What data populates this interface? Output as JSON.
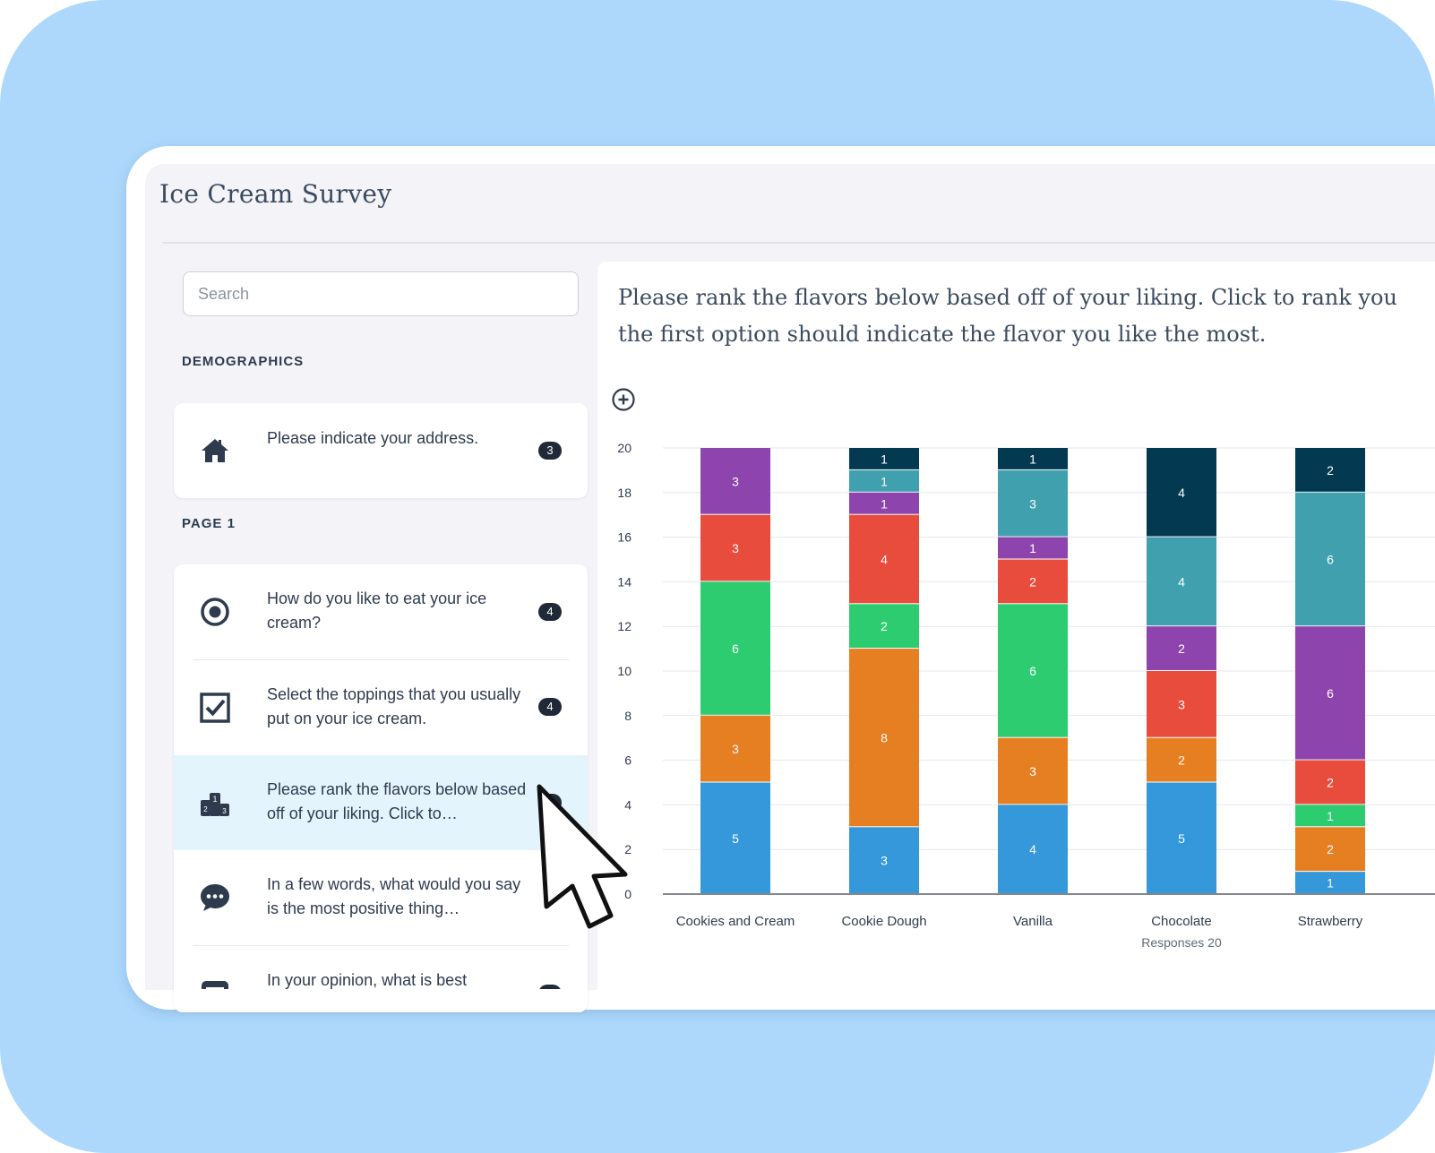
{
  "app": {
    "title": "Ice Cream Survey"
  },
  "search": {
    "placeholder": "Search"
  },
  "sections": {
    "demographics": "DEMOGRAPHICS",
    "page1": "PAGE 1"
  },
  "questions": [
    {
      "icon": "home-icon",
      "text": "Please indicate your address.",
      "count": "3"
    },
    {
      "icon": "radio-button-icon",
      "text": "How do you like to eat your ice cream?",
      "count": "4"
    },
    {
      "icon": "checkbox-icon",
      "text": "Select the toppings that you usually put on your ice cream.",
      "count": "4"
    },
    {
      "icon": "ranking-podium-icon",
      "text": "Please rank the flavors below based off of your liking. Click to…",
      "count": "5"
    },
    {
      "icon": "speech-bubble-icon",
      "text": "In a few words, what would you say is the most positive thing…",
      "count": ""
    },
    {
      "icon": "text-box-icon",
      "text": "In your opinion, what is best",
      "count": ""
    }
  ],
  "main": {
    "question_line1": "Please rank the flavors below based off of your liking. Click to rank you",
    "question_line2": "the first option should indicate the flavor you like the most.",
    "zoom_icon": "zoom-in-icon"
  },
  "colors": {
    "page_bg": "#add8fc",
    "rank1": "#3498db",
    "rank2": "#e67e22",
    "rank3": "#2ecc71",
    "rank4": "#e74c3c",
    "rank5": "#8e44ad",
    "rank6": "#40a0ae",
    "rank7": "#033a52",
    "active_item": "#e4f4fd"
  },
  "chart_data": {
    "type": "bar",
    "stacked": true,
    "categories": [
      "Cookies and Cream",
      "Cookie Dough",
      "Vanilla",
      "Chocolate",
      "Strawberry"
    ],
    "series": [
      {
        "color": "#3498db",
        "values": [
          5,
          3,
          4,
          5,
          1
        ]
      },
      {
        "color": "#e67e22",
        "values": [
          3,
          8,
          3,
          2,
          2
        ]
      },
      {
        "color": "#2ecc71",
        "values": [
          6,
          2,
          6,
          0,
          1
        ]
      },
      {
        "color": "#e74c3c",
        "values": [
          3,
          4,
          2,
          3,
          2
        ]
      },
      {
        "color": "#8e44ad",
        "values": [
          3,
          1,
          1,
          2,
          6
        ]
      },
      {
        "color": "#40a0ae",
        "values": [
          0,
          1,
          3,
          4,
          6
        ]
      },
      {
        "color": "#033a52",
        "values": [
          0,
          1,
          1,
          4,
          2
        ]
      }
    ],
    "yticks": [
      0,
      2,
      4,
      6,
      8,
      10,
      12,
      14,
      16,
      18,
      20
    ],
    "ylim": [
      0,
      20
    ],
    "grid": true,
    "data_labels": true,
    "footnote": "Responses 20"
  }
}
